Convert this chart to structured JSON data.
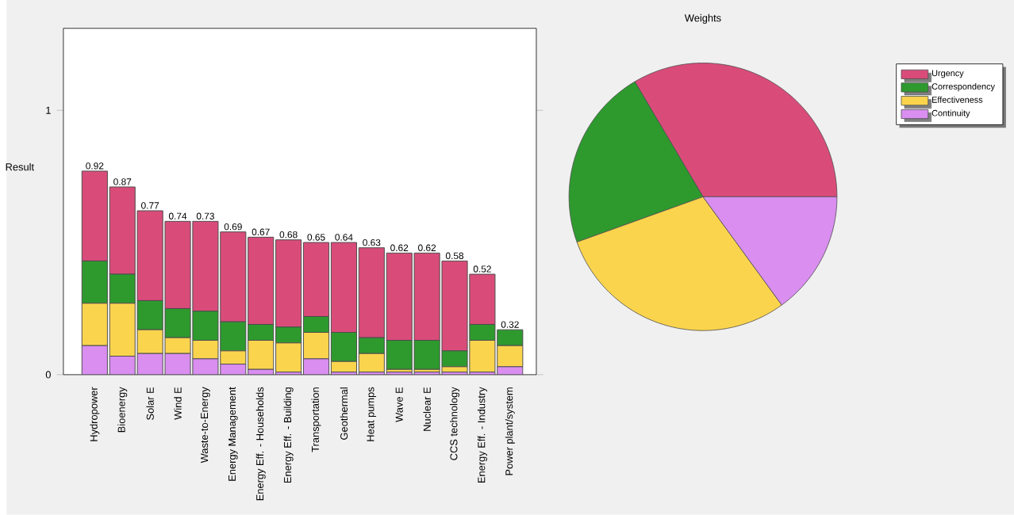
{
  "chart_data": [
    {
      "type": "bar",
      "stacked": true,
      "ylabel": "Result",
      "ylim": [
        0,
        1.31
      ],
      "yticks": [
        0,
        1
      ],
      "categories": [
        "Hydropower",
        "Bioenergy",
        "Solar E",
        "Wind E",
        "Waste-to-Energy",
        "Energy Management",
        "Energy Eff. - Households",
        "Energy Eff. - Building",
        "Transportation",
        "Geothermal",
        "Heat pumps",
        "Wave E",
        "Nuclear E",
        "CCS technology",
        "Energy Eff. - Industry",
        "Power plant/system"
      ],
      "series": [
        {
          "color": "#d98ef0",
          "values": [
            0.11,
            0.07,
            0.08,
            0.08,
            0.06,
            0.04,
            0.02,
            0.01,
            0.06,
            0.01,
            0.01,
            0.01,
            0.01,
            0.01,
            0.01,
            0.03
          ]
        },
        {
          "color": "#fbd44e",
          "values": [
            0.16,
            0.2,
            0.09,
            0.06,
            0.07,
            0.05,
            0.11,
            0.11,
            0.1,
            0.04,
            0.07,
            0.01,
            0.01,
            0.02,
            0.12,
            0.08
          ]
        },
        {
          "color": "#2e9a2e",
          "values": [
            0.16,
            0.11,
            0.11,
            0.11,
            0.11,
            0.11,
            0.06,
            0.06,
            0.06,
            0.11,
            0.06,
            0.11,
            0.11,
            0.06,
            0.06,
            0.06
          ]
        },
        {
          "color": "#d94c7a",
          "values": [
            0.34,
            0.33,
            0.34,
            0.33,
            0.34,
            0.34,
            0.33,
            0.33,
            0.28,
            0.34,
            0.34,
            0.33,
            0.33,
            0.34,
            0.19,
            0
          ]
        }
      ],
      "annotations": [
        "0.92",
        "0.87",
        "0.77",
        "0.74",
        "0.73",
        "0.69",
        "0.67",
        "0.68",
        "0.65",
        "0.64",
        "0.63",
        "0.62",
        "0.62",
        "0.58",
        "0.52",
        "0.32"
      ]
    },
    {
      "type": "pie",
      "title": "Weights",
      "legend": "top right",
      "categories": [
        "Urgency",
        "Correspondency",
        "Effectiveness",
        "Continuity"
      ],
      "values": [
        33.5,
        22,
        29.5,
        15
      ],
      "colors": [
        "#d94c7a",
        "#2e9a2e",
        "#fbd44e",
        "#d98ef0"
      ]
    }
  ]
}
